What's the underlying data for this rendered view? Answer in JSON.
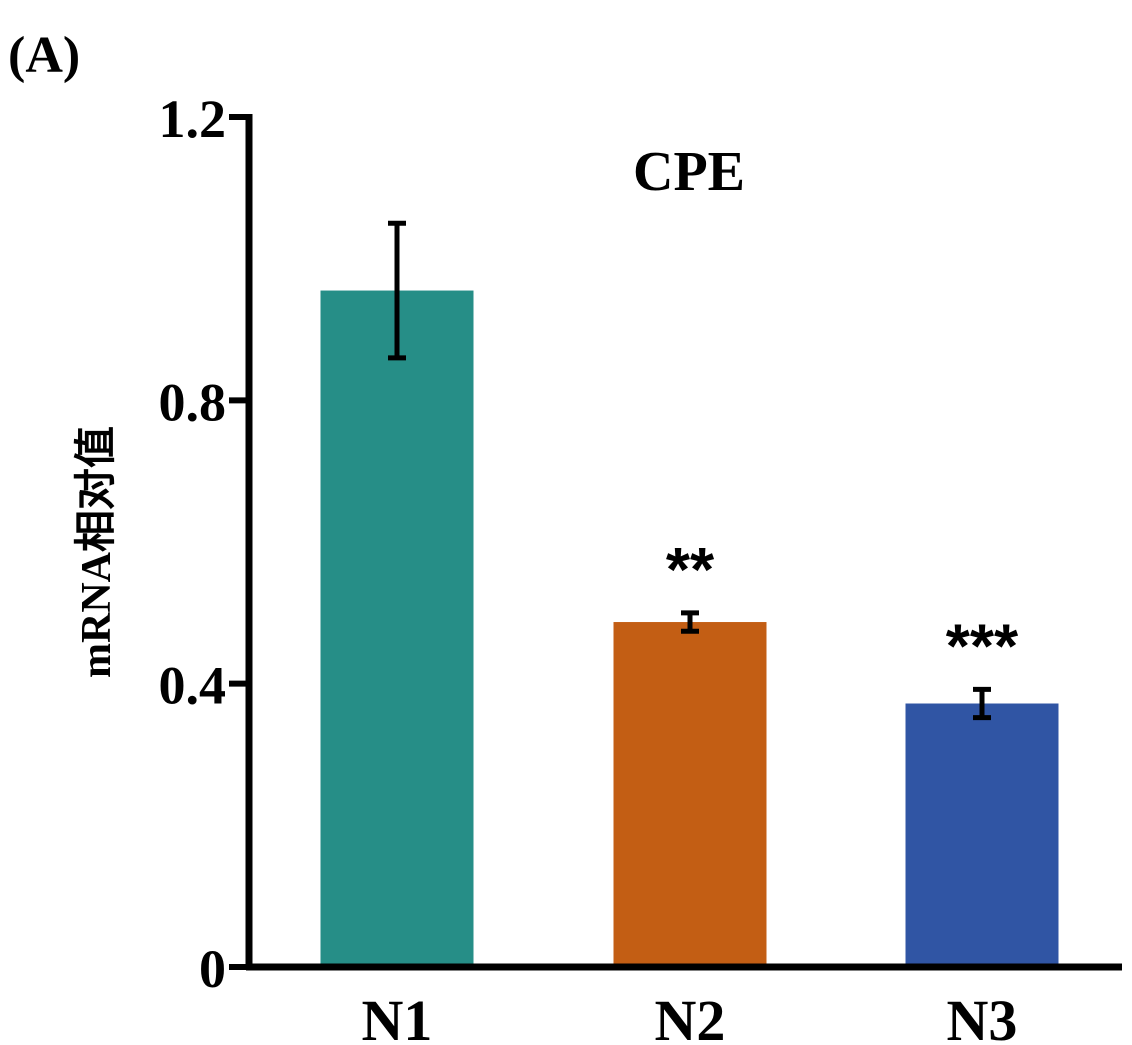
{
  "panel_label": "(A)",
  "chart_data": {
    "type": "bar",
    "title": "CPE",
    "xlabel": "",
    "ylabel": "mRNA相对值",
    "categories": [
      "N1",
      "N2",
      "N3"
    ],
    "values": [
      0.955,
      0.487,
      0.372
    ],
    "errors": [
      0.095,
      0.013,
      0.02
    ],
    "significance": [
      "",
      "**",
      "***"
    ],
    "bar_colors": [
      "#268e87",
      "#c35e14",
      "#3055a4"
    ],
    "ylim": [
      0,
      1.2
    ],
    "yticks": [
      0,
      0.4,
      0.8,
      1.2
    ],
    "ytick_labels": [
      "0",
      "0.4",
      "0.8",
      "1.2"
    ],
    "grid": false
  }
}
